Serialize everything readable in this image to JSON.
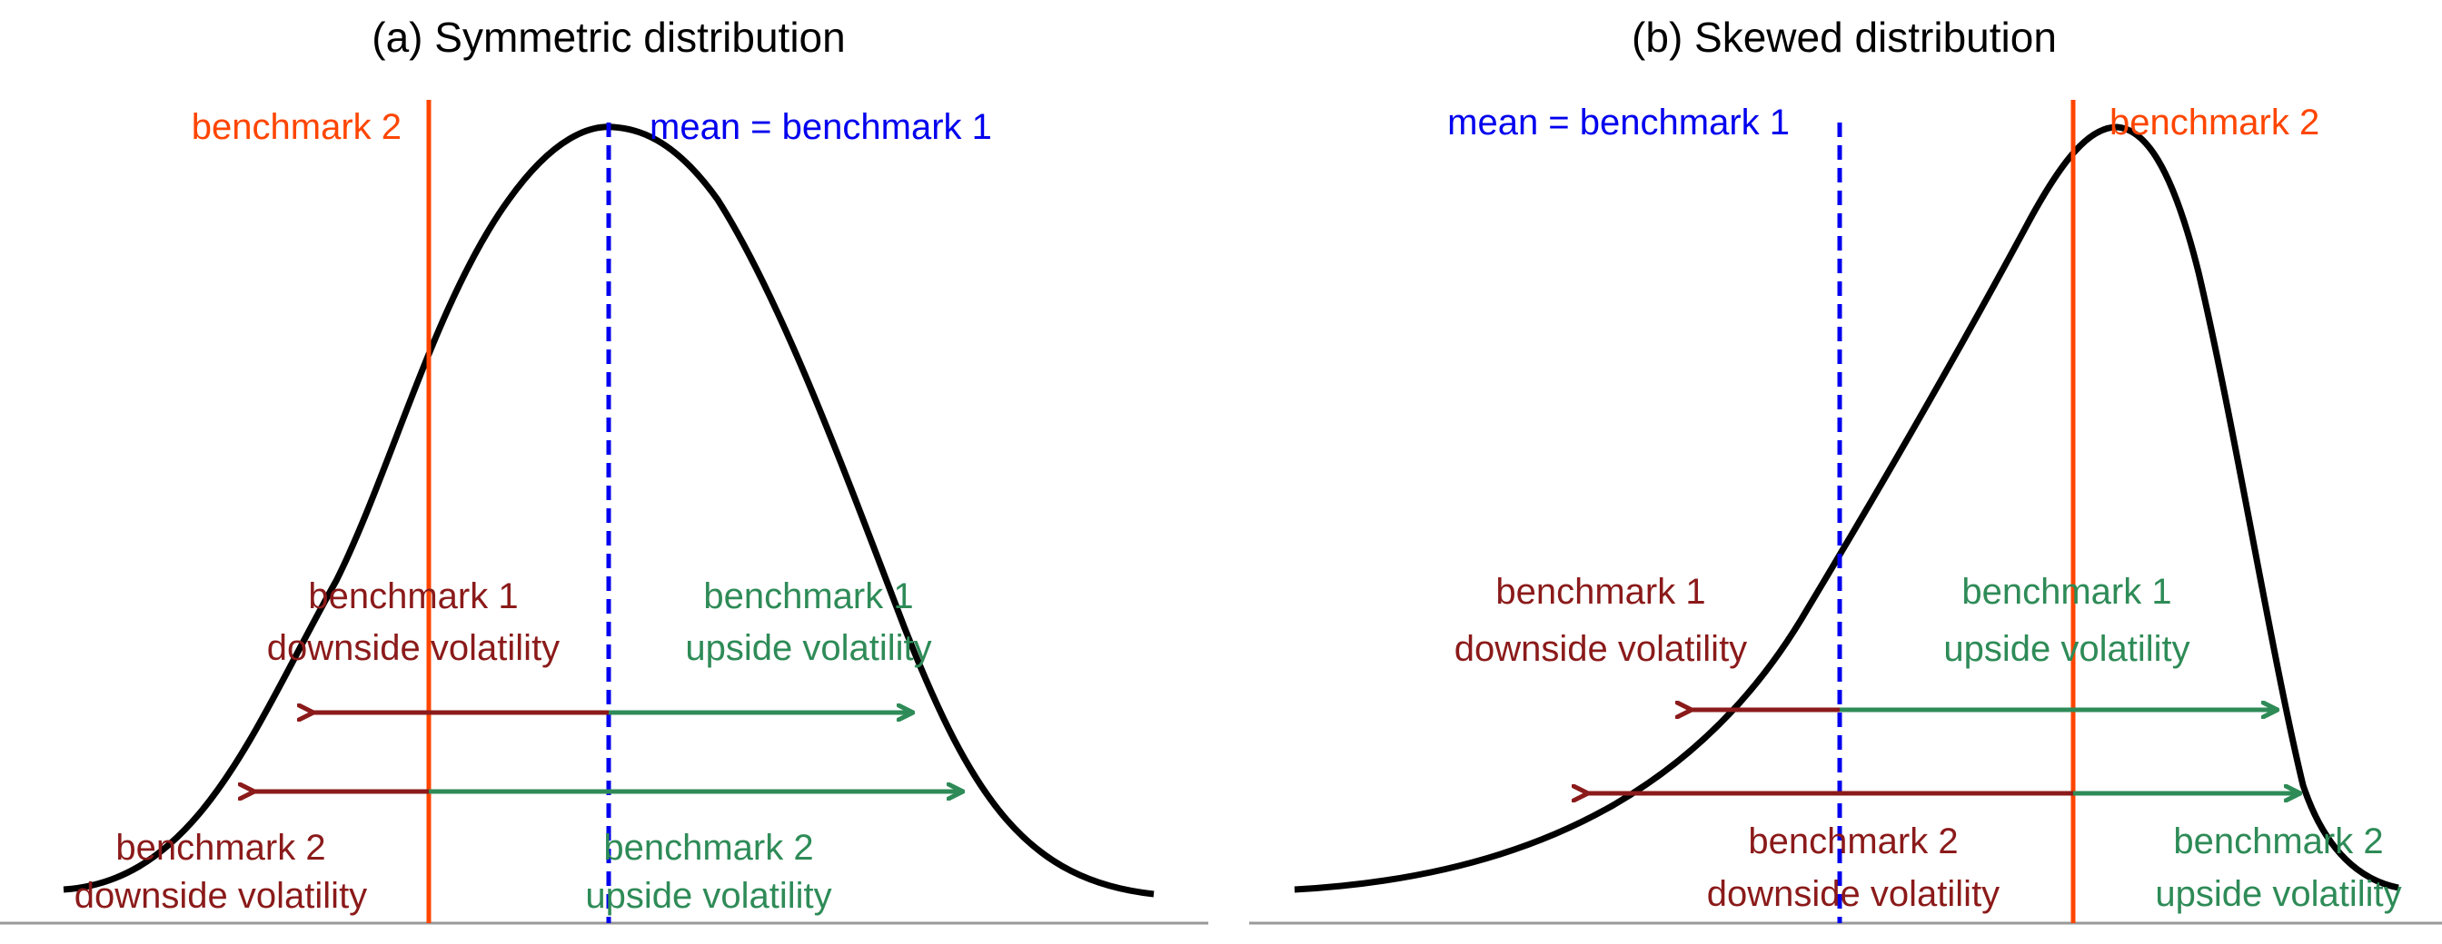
{
  "panels": [
    {
      "title": "(a) Symmetric distribution",
      "labels": {
        "mean": "mean = benchmark 1",
        "bench2": "benchmark 2",
        "b1_down_1": "benchmark 1",
        "b1_down_2": "downside volatility",
        "b1_up_1": "benchmark 1",
        "b1_up_2": "upside volatility",
        "b2_down_1": "benchmark 2",
        "b2_down_2": "downside volatility",
        "b2_up_1": "benchmark 2",
        "b2_up_2": "upside volatility"
      }
    },
    {
      "title": "(b) Skewed distribution",
      "labels": {
        "mean": "mean = benchmark 1",
        "bench2": "benchmark 2",
        "b1_down_1": "benchmark 1",
        "b1_down_2": "downside volatility",
        "b1_up_1": "benchmark 1",
        "b1_up_2": "upside volatility",
        "b2_down_1": "benchmark 2",
        "b2_down_2": "downside volatility",
        "b2_up_1": "benchmark 2",
        "b2_up_2": "upside volatility"
      }
    }
  ],
  "colors": {
    "curve": "#000000",
    "mean_line": "#0000ee",
    "benchmark2_line": "#ff4500",
    "downside": "#8b1a1a",
    "upside": "#2e8b57",
    "axis": "#999999"
  }
}
